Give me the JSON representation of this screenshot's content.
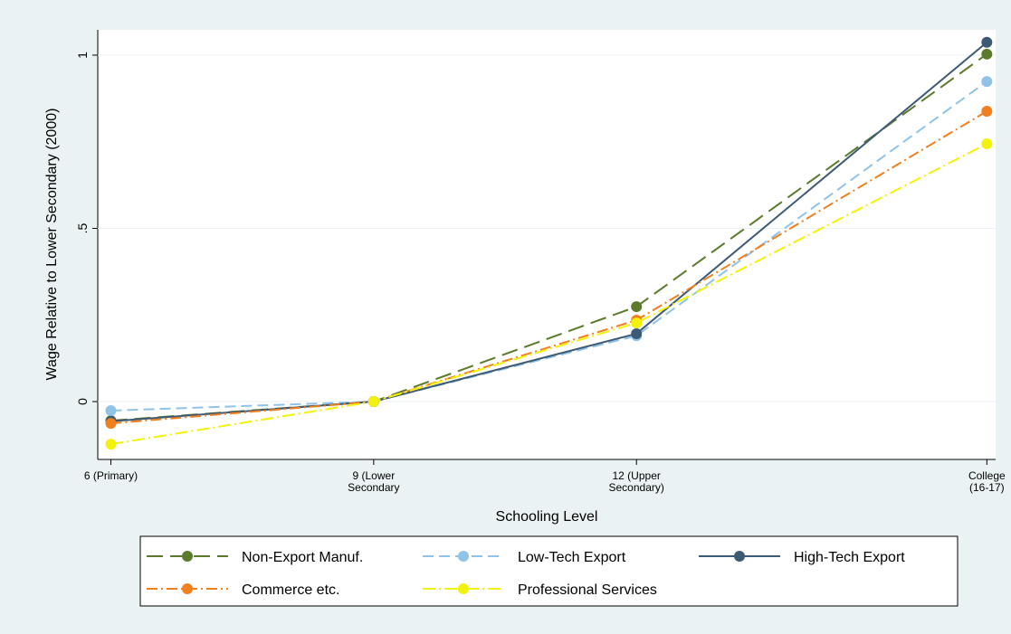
{
  "chart_data": {
    "type": "line",
    "x": [
      {
        "value": 6,
        "label": "6 (Primary)"
      },
      {
        "value": 9,
        "label": "9 (Lower\nSecondary"
      },
      {
        "value": 12,
        "label": "12 (Upper\nSecondary)"
      },
      {
        "value": 16,
        "label": "College\n(16-17)"
      }
    ],
    "xlabel": "Schooling Level",
    "ylabel": "Wage Relative to Lower Secondary (2000)",
    "xlim": [
      5.85,
      16.1
    ],
    "ylim": [
      -0.167,
      1.073
    ],
    "yticks": [
      0,
      {
        "value": 0.5,
        "label": ".5"
      },
      1
    ],
    "grid": true,
    "legend": "bottom",
    "series": [
      {
        "name": "Non-Export Manuf.",
        "color": "#5b7a2c",
        "dash": "18 8",
        "values": [
          -0.055,
          0,
          0.274,
          1.003
        ]
      },
      {
        "name": "Low-Tech Export",
        "color": "#8fc3e8",
        "dash": "12 6",
        "values": [
          -0.026,
          0,
          0.19,
          0.924
        ]
      },
      {
        "name": "High-Tech Export",
        "color": "#3d5a75",
        "dash": "none",
        "values": [
          -0.057,
          0,
          0.196,
          1.037
        ]
      },
      {
        "name": "Commerce etc.",
        "color": "#f07f1e",
        "dash": "12 4 2 4",
        "values": [
          -0.063,
          0,
          0.235,
          0.838
        ]
      },
      {
        "name": "Professional Services",
        "color": "#f2f20a",
        "dash": "14 4 2 4",
        "values": [
          -0.123,
          0,
          0.227,
          0.744
        ]
      }
    ]
  }
}
